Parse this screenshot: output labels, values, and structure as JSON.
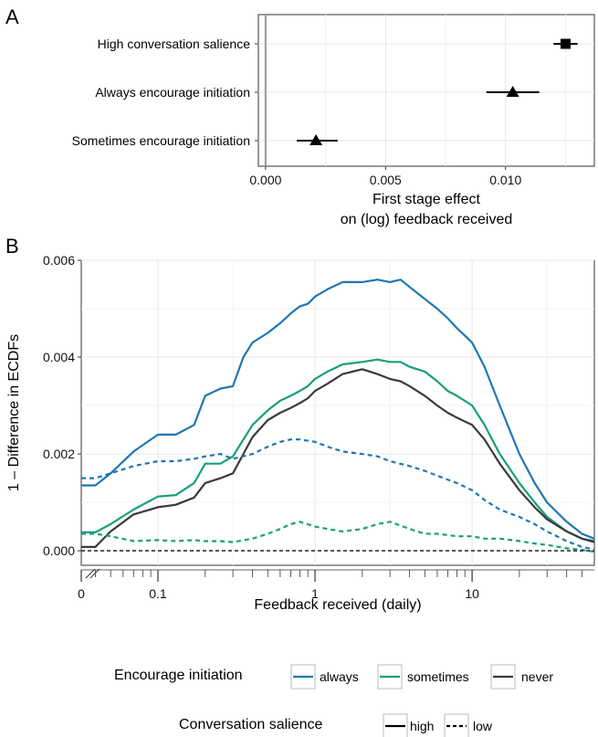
{
  "chart_data": [
    {
      "panel": "A",
      "type": "scatter",
      "subtype": "point-range",
      "xlabel": "First stage effect\non (log) feedback received",
      "xticks": [
        0,
        0.005,
        0.01
      ],
      "xtick_labels": [
        "0.000",
        "0.005",
        "0.010"
      ],
      "xlim": [
        -0.0003,
        0.0137
      ],
      "grid": true,
      "reference_line_x": 0,
      "points": [
        {
          "label": "High conversation salience",
          "estimate": 0.0125,
          "low": 0.012,
          "high": 0.013,
          "marker": "square"
        },
        {
          "label": "Always encourage initiation",
          "estimate": 0.0103,
          "low": 0.0092,
          "high": 0.0114,
          "marker": "triangle"
        },
        {
          "label": "Sometimes encourage initiation",
          "estimate": 0.0021,
          "low": 0.0013,
          "high": 0.003,
          "marker": "triangle"
        }
      ]
    },
    {
      "panel": "B",
      "type": "line",
      "xlabel": "Feedback received (daily)",
      "ylabel": "1 – Difference in ECDFs",
      "xscale": "log (with break at 0)",
      "xtick_labels": [
        "0",
        "0.1",
        "1",
        "10"
      ],
      "yticks": [
        0,
        0.002,
        0.004,
        0.006
      ],
      "ytick_labels": [
        "0.000",
        "0.002",
        "0.004",
        "0.006"
      ],
      "ylim": [
        -0.0003,
        0.006
      ],
      "xlim": [
        0.0325,
        60
      ],
      "grid": true,
      "reference_line_y": 0,
      "legend_position": "bottom",
      "colors": {
        "always": "#1f77b4",
        "sometimes": "#16a07a",
        "never": "#3a3a3a"
      },
      "series": [
        {
          "name": "always, high",
          "initiation": "always",
          "salience": "high",
          "x": [
            0.0325,
            0.04,
            0.05,
            0.07,
            0.1,
            0.13,
            0.17,
            0.2,
            0.25,
            0.3,
            0.35,
            0.4,
            0.5,
            0.6,
            0.7,
            0.8,
            0.9,
            1.0,
            1.2,
            1.5,
            2.0,
            2.5,
            3.0,
            3.5,
            4.0,
            5.0,
            6.0,
            7.0,
            8.0,
            10,
            12,
            15,
            20,
            25,
            30,
            40,
            50,
            60
          ],
          "y": [
            0.00135,
            0.00135,
            0.0016,
            0.00205,
            0.0024,
            0.0024,
            0.0026,
            0.0032,
            0.00335,
            0.0034,
            0.004,
            0.0043,
            0.0045,
            0.0047,
            0.0049,
            0.00505,
            0.0051,
            0.00525,
            0.0054,
            0.00555,
            0.00555,
            0.0056,
            0.00555,
            0.0056,
            0.00545,
            0.0052,
            0.005,
            0.0048,
            0.0046,
            0.0043,
            0.0038,
            0.003,
            0.002,
            0.0014,
            0.001,
            0.0006,
            0.00035,
            0.00025
          ]
        },
        {
          "name": "sometimes, high",
          "initiation": "sometimes",
          "salience": "high",
          "x": [
            0.0325,
            0.04,
            0.05,
            0.07,
            0.1,
            0.13,
            0.17,
            0.2,
            0.25,
            0.3,
            0.35,
            0.4,
            0.5,
            0.6,
            0.7,
            0.8,
            0.9,
            1.0,
            1.2,
            1.5,
            2.0,
            2.5,
            3.0,
            3.5,
            4.0,
            5.0,
            6.0,
            7.0,
            8.0,
            10,
            12,
            15,
            20,
            25,
            30,
            40,
            50,
            60
          ],
          "y": [
            0.00038,
            0.00038,
            0.00055,
            0.00085,
            0.00112,
            0.00115,
            0.0014,
            0.0018,
            0.0018,
            0.00195,
            0.0023,
            0.0026,
            0.0029,
            0.0031,
            0.0032,
            0.0033,
            0.0034,
            0.00355,
            0.0037,
            0.00385,
            0.0039,
            0.00395,
            0.0039,
            0.0039,
            0.0038,
            0.0037,
            0.0035,
            0.0033,
            0.0032,
            0.003,
            0.0026,
            0.002,
            0.0014,
            0.001,
            0.0007,
            0.0004,
            0.00025,
            0.0002
          ]
        },
        {
          "name": "never, high",
          "initiation": "never",
          "salience": "high",
          "x": [
            0.0325,
            0.04,
            0.05,
            0.07,
            0.1,
            0.13,
            0.17,
            0.2,
            0.25,
            0.3,
            0.35,
            0.4,
            0.5,
            0.6,
            0.7,
            0.8,
            0.9,
            1.0,
            1.2,
            1.5,
            2.0,
            2.5,
            3.0,
            3.5,
            4.0,
            5.0,
            6.0,
            7.0,
            8.0,
            10,
            12,
            15,
            20,
            25,
            30,
            40,
            50,
            60
          ],
          "y": [
            8e-05,
            8e-05,
            0.0004,
            0.00075,
            0.0009,
            0.00095,
            0.0011,
            0.0014,
            0.0015,
            0.0016,
            0.002,
            0.00235,
            0.0027,
            0.00285,
            0.00295,
            0.00305,
            0.00315,
            0.0033,
            0.00345,
            0.00365,
            0.00375,
            0.00365,
            0.00355,
            0.0035,
            0.0034,
            0.0032,
            0.003,
            0.00285,
            0.00275,
            0.0026,
            0.0023,
            0.0018,
            0.00125,
            0.0009,
            0.00065,
            0.0004,
            0.00025,
            0.00018
          ]
        },
        {
          "name": "always, low",
          "initiation": "always",
          "salience": "low",
          "x": [
            0.0325,
            0.04,
            0.05,
            0.07,
            0.1,
            0.13,
            0.17,
            0.2,
            0.25,
            0.3,
            0.4,
            0.5,
            0.6,
            0.7,
            0.8,
            1.0,
            1.2,
            1.5,
            2.0,
            2.5,
            3.0,
            4.0,
            5.0,
            6.0,
            8.0,
            10,
            12,
            15,
            20,
            25,
            30,
            40,
            50,
            60
          ],
          "y": [
            0.0015,
            0.0015,
            0.0016,
            0.00175,
            0.00185,
            0.00185,
            0.0019,
            0.00195,
            0.002,
            0.0019,
            0.002,
            0.00215,
            0.00225,
            0.0023,
            0.0023,
            0.00225,
            0.00215,
            0.00205,
            0.002,
            0.00195,
            0.00185,
            0.00175,
            0.00165,
            0.00155,
            0.0014,
            0.00125,
            0.00105,
            0.00085,
            0.0007,
            0.00055,
            0.0004,
            0.0002,
            8e-05,
            3e-05
          ]
        },
        {
          "name": "sometimes, low",
          "initiation": "sometimes",
          "salience": "low",
          "x": [
            0.0325,
            0.04,
            0.05,
            0.07,
            0.1,
            0.13,
            0.17,
            0.2,
            0.25,
            0.3,
            0.4,
            0.5,
            0.6,
            0.7,
            0.8,
            1.0,
            1.2,
            1.5,
            2.0,
            2.5,
            3.0,
            4.0,
            5.0,
            6.0,
            8.0,
            10,
            12,
            15,
            20,
            25,
            30,
            40,
            50,
            60
          ],
          "y": [
            0.00035,
            0.00035,
            0.0003,
            0.0002,
            0.00022,
            0.0002,
            0.00022,
            0.0002,
            0.0002,
            0.00018,
            0.00025,
            0.00035,
            0.00045,
            0.00055,
            0.0006,
            0.0005,
            0.00045,
            0.0004,
            0.00045,
            0.00055,
            0.0006,
            0.00045,
            0.00035,
            0.00035,
            0.0003,
            0.0003,
            0.00025,
            0.00025,
            0.0002,
            0.00015,
            0.00012,
            5e-05,
            2e-05,
            -2e-05
          ]
        }
      ],
      "legend": {
        "initiation_title": "Encourage initiation",
        "initiation_items": [
          "always",
          "sometimes",
          "never"
        ],
        "salience_title": "Conversation salience",
        "salience_items": [
          "high",
          "low"
        ]
      }
    }
  ],
  "panel_labels": [
    "A",
    "B"
  ]
}
